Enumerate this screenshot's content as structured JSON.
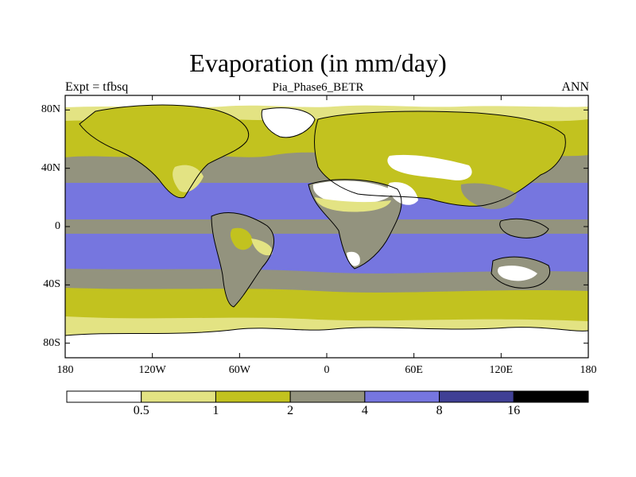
{
  "title": "Evaporation (in mm/day)",
  "subtitle": "Pia_Phase6_BETR",
  "left_string": "Expt = tfbsq",
  "right_string": "ANN",
  "map": {
    "projection": "cylindrical-equidistant",
    "lon_range": [
      -180,
      180
    ],
    "lat_range": [
      -90,
      90
    ],
    "lat_ticks": [
      {
        "lat": 80,
        "label": "80N"
      },
      {
        "lat": 40,
        "label": "40N"
      },
      {
        "lat": 0,
        "label": "0"
      },
      {
        "lat": -40,
        "label": "40S"
      },
      {
        "lat": -80,
        "label": "80S"
      }
    ],
    "lon_ticks": [
      {
        "lon": -180,
        "label": "180"
      },
      {
        "lon": -120,
        "label": "120W"
      },
      {
        "lon": -60,
        "label": "60W"
      },
      {
        "lon": 0,
        "label": "0"
      },
      {
        "lon": 60,
        "label": "60E"
      },
      {
        "lon": 120,
        "label": "120E"
      },
      {
        "lon": 180,
        "label": "180"
      }
    ]
  },
  "colorbar": {
    "levels": [
      "0.5",
      "1",
      "2",
      "4",
      "8",
      "16"
    ],
    "colors": [
      "#ffffff",
      "#e3e383",
      "#c2c21f",
      "#93937e",
      "#7676df",
      "#404095",
      "#000000"
    ]
  },
  "chart_data": {
    "type": "heatmap",
    "title": "Evaporation (in mm/day)",
    "subtitle": "Pia_Phase6_BETR",
    "xlim": [
      -180,
      180
    ],
    "ylim": [
      -90,
      90
    ],
    "legend": "bottom",
    "contour_levels": [
      0.5,
      1,
      2,
      4,
      8,
      16
    ],
    "zonal_bands": [
      {
        "lat_range": [
          -90,
          -68
        ],
        "category": "<0.5"
      },
      {
        "lat_range": [
          -68,
          -58
        ],
        "category": "0.5-2"
      },
      {
        "lat_range": [
          -58,
          -45
        ],
        "category": "1-2"
      },
      {
        "lat_range": [
          -45,
          -38
        ],
        "category": "2-4"
      },
      {
        "lat_range": [
          -38,
          -5
        ],
        "category": "4-8 (oceans)"
      },
      {
        "lat_range": [
          -5,
          5
        ],
        "category": "2-4"
      },
      {
        "lat_range": [
          5,
          32
        ],
        "category": "4-8 (oceans)"
      },
      {
        "lat_range": [
          32,
          48
        ],
        "category": "2-4"
      },
      {
        "lat_range": [
          48,
          70
        ],
        "category": "1-2"
      },
      {
        "lat_range": [
          70,
          90
        ],
        "category": "<0.5"
      }
    ]
  }
}
